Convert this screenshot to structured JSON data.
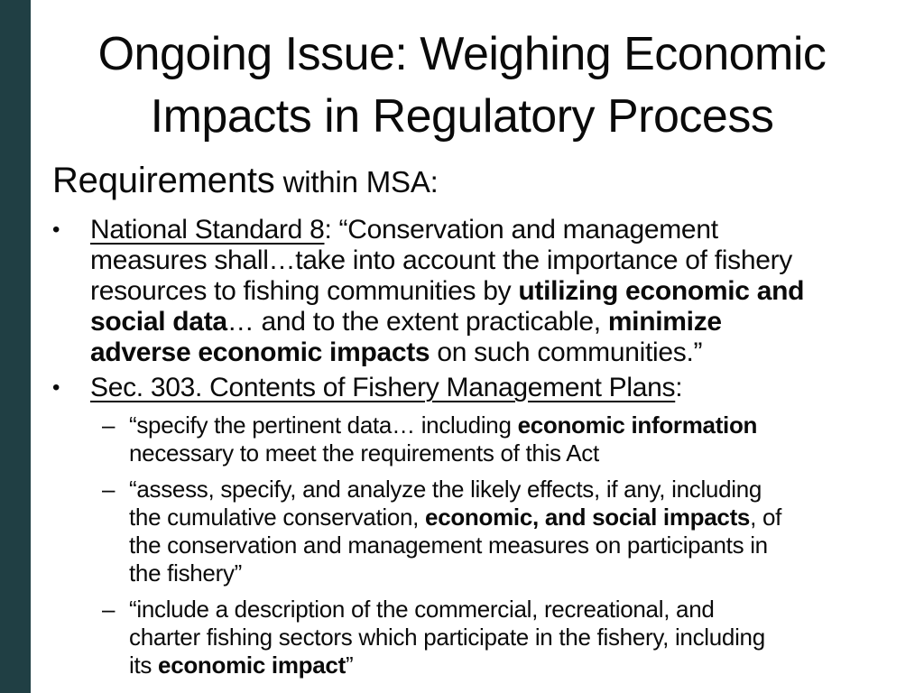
{
  "slide": {
    "colors": {
      "accent_bar": "#203f44",
      "text": "#0a0a0a",
      "background": "#ffffff"
    },
    "title": {
      "line1": "Ongoing Issue: Weighing Economic",
      "line2": "Impacts in Regulatory Process"
    },
    "heading": {
      "main": "Requirements",
      "rest": " within MSA:"
    },
    "bullets": [
      {
        "level": 1,
        "marker": "•",
        "lines": [
          [
            {
              "t": "National Standard 8",
              "u": true
            },
            {
              "t": ": “Conservation and management"
            }
          ],
          [
            {
              "t": "measures shall…take into account the importance of fishery"
            }
          ],
          [
            {
              "t": "resources to fishing communities by "
            },
            {
              "t": "utilizing economic and",
              "b": true
            }
          ],
          [
            {
              "t": "social data",
              "b": true
            },
            {
              "t": "… and to the extent practicable, "
            },
            {
              "t": "minimize",
              "b": true
            }
          ],
          [
            {
              "t": "adverse economic impacts",
              "b": true
            },
            {
              "t": " on such communities.”"
            }
          ]
        ]
      },
      {
        "level": 1,
        "marker": "•",
        "lines": [
          [
            {
              "t": "Sec. 303. Contents of Fishery Management Plans",
              "u": true
            },
            {
              "t": ":"
            }
          ]
        ]
      },
      {
        "level": 2,
        "marker": "–",
        "lines": [
          [
            {
              "t": "“specify the pertinent data… including "
            },
            {
              "t": "economic information",
              "b": true
            }
          ],
          [
            {
              "t": "necessary to meet the requirements of this Act"
            }
          ]
        ]
      },
      {
        "level": 2,
        "marker": "–",
        "lines": [
          [
            {
              "t": "“assess, specify, and analyze the likely effects, if any, including"
            }
          ],
          [
            {
              "t": "the cumulative conservation, "
            },
            {
              "t": "economic, and social impacts",
              "b": true
            },
            {
              "t": ", of"
            }
          ],
          [
            {
              "t": "the conservation and management measures on participants in"
            }
          ],
          [
            {
              "t": "the fishery”"
            }
          ]
        ]
      },
      {
        "level": 2,
        "marker": "–",
        "lines": [
          [
            {
              "t": "“include a description of the commercial, recreational, and"
            }
          ],
          [
            {
              "t": "charter fishing sectors which participate in the fishery, including"
            }
          ],
          [
            {
              "t": "its "
            },
            {
              "t": "economic impact",
              "b": true
            },
            {
              "t": "”"
            }
          ]
        ]
      }
    ]
  }
}
